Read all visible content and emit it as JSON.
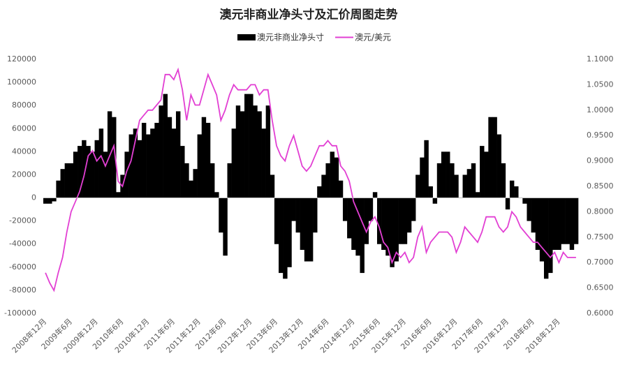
{
  "chart_data": {
    "type": "bar_line",
    "title": "澳元非商业净头寸及汇价周图走势",
    "categories": [
      "2008年12月",
      null,
      null,
      null,
      null,
      null,
      "2009年6月",
      null,
      null,
      null,
      null,
      null,
      "2009年12月",
      null,
      null,
      null,
      null,
      null,
      "2010年6月",
      null,
      null,
      null,
      null,
      null,
      "2010年12月",
      null,
      null,
      null,
      null,
      null,
      "2011年6月",
      null,
      null,
      null,
      null,
      null,
      "2011年12月",
      null,
      null,
      null,
      null,
      null,
      "2012年6月",
      null,
      null,
      null,
      null,
      null,
      "2012年12月",
      null,
      null,
      null,
      null,
      null,
      "2013年6月",
      null,
      null,
      null,
      null,
      null,
      "2013年12月",
      null,
      null,
      null,
      null,
      null,
      "2014年6月",
      null,
      null,
      null,
      null,
      null,
      "2014年12月",
      null,
      null,
      null,
      null,
      null,
      "2015年6月",
      null,
      null,
      null,
      null,
      null,
      "2015年12月",
      null,
      null,
      null,
      null,
      null,
      "2016年6月",
      null,
      null,
      null,
      null,
      null,
      "2016年12月",
      null,
      null,
      null,
      null,
      null,
      "2017年6月",
      null,
      null,
      null,
      null,
      null,
      "2017年12月",
      null,
      null,
      null,
      null,
      null,
      "2018年6月",
      null,
      null,
      null,
      null,
      null,
      "2018年12月",
      null,
      null,
      null,
      null
    ],
    "series": [
      {
        "name": "澳元非商业净头寸",
        "color": "#000000",
        "kind": "bar",
        "values": [
          -5000,
          -5000,
          -3000,
          15000,
          25000,
          30000,
          30000,
          40000,
          45000,
          50000,
          45000,
          40000,
          50000,
          60000,
          40000,
          75000,
          70000,
          5000,
          20000,
          40000,
          55000,
          60000,
          50000,
          65000,
          55000,
          60000,
          65000,
          80000,
          90000,
          70000,
          60000,
          75000,
          45000,
          30000,
          15000,
          25000,
          55000,
          70000,
          65000,
          30000,
          5000,
          -30000,
          -50000,
          30000,
          60000,
          80000,
          75000,
          90000,
          90000,
          80000,
          75000,
          60000,
          80000,
          20000,
          -40000,
          -65000,
          -70000,
          -60000,
          -20000,
          -30000,
          -45000,
          -55000,
          -55000,
          -30000,
          10000,
          20000,
          30000,
          40000,
          35000,
          15000,
          -20000,
          -35000,
          -45000,
          -50000,
          -65000,
          -40000,
          -20000,
          5000,
          -40000,
          -45000,
          -50000,
          -60000,
          -55000,
          -40000,
          -40000,
          -30000,
          -20000,
          20000,
          35000,
          50000,
          10000,
          -5000,
          30000,
          40000,
          40000,
          30000,
          20000,
          0,
          20000,
          25000,
          30000,
          5000,
          45000,
          40000,
          70000,
          70000,
          55000,
          30000,
          -10000,
          15000,
          10000,
          0,
          -5000,
          -20000,
          -30000,
          -45000,
          -55000,
          -70000,
          -65000,
          -45000,
          -45000,
          -40000,
          -40000,
          -45000,
          -40000
        ]
      },
      {
        "name": "澳元/美元",
        "color": "#e23fd3",
        "kind": "line",
        "axis": "y2",
        "values": [
          0.68,
          0.66,
          0.645,
          0.68,
          0.71,
          0.76,
          0.8,
          0.82,
          0.84,
          0.87,
          0.91,
          0.92,
          0.9,
          0.91,
          0.89,
          0.91,
          0.93,
          0.86,
          0.85,
          0.88,
          0.9,
          0.94,
          0.98,
          0.99,
          1.0,
          1.0,
          1.01,
          1.02,
          1.07,
          1.07,
          1.06,
          1.08,
          1.04,
          0.98,
          1.03,
          1.01,
          1.01,
          1.04,
          1.07,
          1.05,
          1.03,
          0.98,
          1.0,
          1.03,
          1.05,
          1.04,
          1.04,
          1.04,
          1.05,
          1.05,
          1.03,
          1.04,
          1.04,
          0.98,
          0.93,
          0.91,
          0.9,
          0.93,
          0.95,
          0.92,
          0.89,
          0.88,
          0.89,
          0.91,
          0.93,
          0.93,
          0.94,
          0.93,
          0.93,
          0.89,
          0.88,
          0.86,
          0.82,
          0.8,
          0.78,
          0.76,
          0.78,
          0.79,
          0.77,
          0.74,
          0.73,
          0.7,
          0.72,
          0.71,
          0.72,
          0.7,
          0.71,
          0.75,
          0.77,
          0.72,
          0.74,
          0.75,
          0.76,
          0.76,
          0.76,
          0.75,
          0.72,
          0.74,
          0.77,
          0.76,
          0.75,
          0.74,
          0.76,
          0.79,
          0.79,
          0.79,
          0.77,
          0.76,
          0.77,
          0.8,
          0.79,
          0.77,
          0.76,
          0.75,
          0.74,
          0.74,
          0.73,
          0.72,
          0.71,
          0.72,
          0.7,
          0.72,
          0.71,
          0.71,
          0.71
        ]
      }
    ],
    "ylim": [
      -100000,
      120000
    ],
    "yticks": [
      -100000,
      -80000,
      -60000,
      -40000,
      -20000,
      0,
      20000,
      40000,
      60000,
      80000,
      100000,
      120000
    ],
    "y2lim": [
      0.6,
      1.1
    ],
    "y2ticks": [
      {
        "value": 0.6,
        "label": "0.6000"
      },
      {
        "value": 0.65,
        "label": "0.6500"
      },
      {
        "value": 0.7,
        "label": "0.7000"
      },
      {
        "value": 0.75,
        "label": "0.7500"
      },
      {
        "value": 0.8,
        "label": "0.8000"
      },
      {
        "value": 0.85,
        "label": "0.8500"
      },
      {
        "value": 0.9,
        "label": "0.9000"
      },
      {
        "value": 0.95,
        "label": "0.9500"
      },
      {
        "value": 1.0,
        "label": "1.0000"
      },
      {
        "value": 1.05,
        "label": "1.0500"
      },
      {
        "value": 1.1,
        "label": "1.1000"
      }
    ],
    "grid": false,
    "legend": "top"
  }
}
